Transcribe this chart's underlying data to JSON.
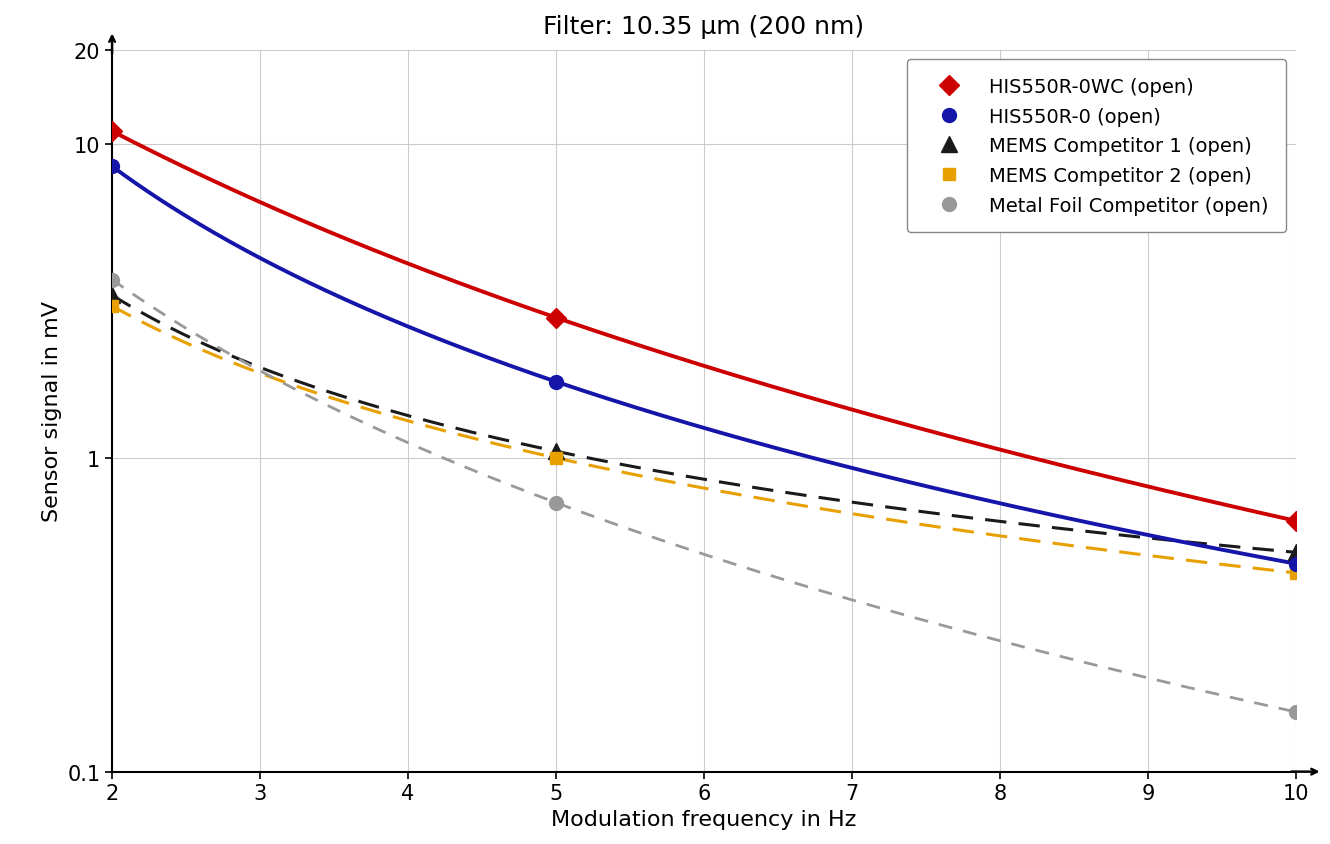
{
  "title": "Filter: 10.35 μm (200 nm)",
  "xlabel": "Modulation frequency in Hz",
  "ylabel": "Sensor signal in mV",
  "xlim": [
    2,
    10
  ],
  "ylim": [
    0.1,
    20
  ],
  "series": [
    {
      "label": "HIS550R-0WC (open)",
      "x": [
        2,
        5,
        10
      ],
      "y": [
        11.0,
        2.8,
        0.63
      ],
      "color": "#CC0000",
      "linestyle": "-",
      "linewidth": 2.8,
      "marker": "D",
      "markersize": 10,
      "markerfacecolor": "#CC0000",
      "dashes": [],
      "smooth": true
    },
    {
      "label": "HIS550R-0 (open)",
      "x": [
        2,
        5,
        10
      ],
      "y": [
        8.5,
        1.75,
        0.46
      ],
      "color": "#1515AA",
      "linestyle": "-",
      "linewidth": 2.8,
      "marker": "o",
      "markersize": 10,
      "markerfacecolor": "#1515AA",
      "dashes": [],
      "smooth": true
    },
    {
      "label": "MEMS Competitor 1 (open)",
      "x": [
        2,
        5,
        10
      ],
      "y": [
        3.3,
        1.05,
        0.5
      ],
      "color": "#1a1a1a",
      "linestyle": "--",
      "linewidth": 2.2,
      "marker": "^",
      "markersize": 12,
      "markerfacecolor": "#1a1a1a",
      "dashes": [
        7,
        4
      ],
      "smooth": true
    },
    {
      "label": "MEMS Competitor 2 (open)",
      "x": [
        2,
        5,
        10
      ],
      "y": [
        3.05,
        1.0,
        0.43
      ],
      "color": "#E8A000",
      "linestyle": "--",
      "linewidth": 2.2,
      "marker": "s",
      "markersize": 9,
      "markerfacecolor": "#E8A000",
      "dashes": [
        7,
        4
      ],
      "smooth": true
    },
    {
      "label": "Metal Foil Competitor (open)",
      "x": [
        2,
        5,
        10
      ],
      "y": [
        3.7,
        0.72,
        0.155
      ],
      "color": "#999999",
      "linestyle": "--",
      "linewidth": 2.0,
      "marker": "o",
      "markersize": 10,
      "markerfacecolor": "#999999",
      "dashes": [
        5,
        4
      ],
      "smooth": true
    }
  ],
  "xticks": [
    2,
    3,
    4,
    5,
    6,
    7,
    8,
    9,
    10
  ],
  "yticks": [
    0.1,
    1,
    10,
    20
  ],
  "grid_color": "#cccccc",
  "background_color": "#ffffff",
  "legend_fontsize": 14,
  "axis_fontsize": 16,
  "title_fontsize": 18,
  "tick_fontsize": 15
}
